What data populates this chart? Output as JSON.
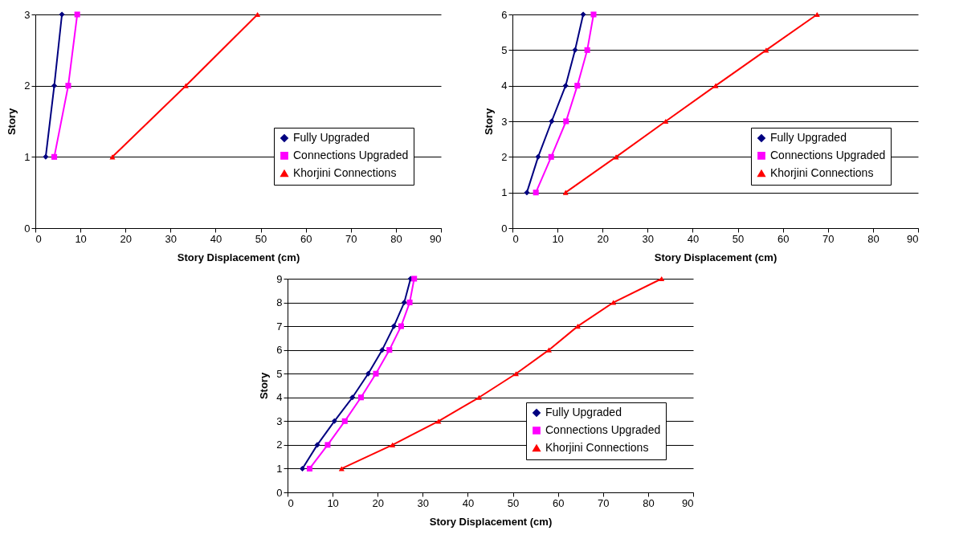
{
  "chart_data": [
    {
      "type": "line",
      "xlabel": "Story Displacement (cm)",
      "ylabel": "Story",
      "xlim": [
        0,
        90
      ],
      "xticks": [
        0,
        10,
        20,
        30,
        40,
        50,
        60,
        70,
        80,
        90
      ],
      "ylim": [
        0,
        3
      ],
      "yticks": [
        0,
        1,
        2,
        3
      ],
      "grid": "y",
      "legend": "right",
      "series": [
        {
          "name": "Fully Upgraded",
          "color": "#000080",
          "marker": "diamond",
          "x": [
            2.3,
            4.2,
            5.9
          ],
          "values": [
            1,
            2,
            3
          ]
        },
        {
          "name": "Connections Upgraded",
          "color": "#ff00ff",
          "marker": "square",
          "x": [
            4.2,
            7.3,
            9.3
          ],
          "values": [
            1,
            2,
            3
          ]
        },
        {
          "name": "Khorjini Connections",
          "color": "#ff0000",
          "marker": "triangle",
          "x": [
            17.1,
            33.4,
            49.3
          ],
          "values": [
            1,
            2,
            3
          ]
        }
      ]
    },
    {
      "type": "line",
      "xlabel": "Story Displacement (cm)",
      "ylabel": "Story",
      "xlim": [
        0,
        90
      ],
      "xticks": [
        0,
        10,
        20,
        30,
        40,
        50,
        60,
        70,
        80,
        90
      ],
      "ylim": [
        0,
        6
      ],
      "yticks": [
        0,
        1,
        2,
        3,
        4,
        5,
        6
      ],
      "grid": "y",
      "legend": "right",
      "series": [
        {
          "name": "Fully Upgraded",
          "color": "#000080",
          "marker": "diamond",
          "x": [
            3.2,
            5.7,
            8.7,
            11.8,
            13.9,
            15.7
          ],
          "values": [
            1,
            2,
            3,
            4,
            5,
            6
          ]
        },
        {
          "name": "Connections Upgraded",
          "color": "#ff00ff",
          "marker": "square",
          "x": [
            5.2,
            8.6,
            11.9,
            14.4,
            16.6,
            18.0
          ],
          "values": [
            1,
            2,
            3,
            4,
            5,
            6
          ]
        },
        {
          "name": "Khorjini Connections",
          "color": "#ff0000",
          "marker": "triangle",
          "x": [
            11.8,
            23.0,
            34.0,
            45.1,
            56.3,
            67.6
          ],
          "values": [
            1,
            2,
            3,
            4,
            5,
            6
          ]
        }
      ]
    },
    {
      "type": "line",
      "xlabel": "Story Displacement (cm)",
      "ylabel": "Story",
      "xlim": [
        0,
        90
      ],
      "xticks": [
        0,
        10,
        20,
        30,
        40,
        50,
        60,
        70,
        80,
        90
      ],
      "ylim": [
        0,
        9
      ],
      "yticks": [
        0,
        1,
        2,
        3,
        4,
        5,
        6,
        7,
        8,
        9
      ],
      "grid": "y",
      "legend": "bottom right",
      "series": [
        {
          "name": "Fully Upgraded",
          "color": "#000080",
          "marker": "diamond",
          "x": [
            3.3,
            6.6,
            10.4,
            14.4,
            17.9,
            21.0,
            23.6,
            25.9,
            27.3
          ],
          "values": [
            1,
            2,
            3,
            4,
            5,
            6,
            7,
            8,
            9
          ]
        },
        {
          "name": "Connections Upgraded",
          "color": "#ff00ff",
          "marker": "square",
          "x": [
            4.9,
            8.9,
            12.7,
            16.3,
            19.6,
            22.6,
            25.2,
            27.1,
            28.1
          ],
          "values": [
            1,
            2,
            3,
            4,
            5,
            6,
            7,
            8,
            9
          ]
        },
        {
          "name": "Khorjini Connections",
          "color": "#ff0000",
          "marker": "triangle",
          "x": [
            12.0,
            23.3,
            33.5,
            42.5,
            50.7,
            58.0,
            64.4,
            72.3,
            83.0
          ],
          "values": [
            1,
            2,
            3,
            4,
            5,
            6,
            7,
            8,
            9
          ]
        }
      ]
    }
  ]
}
